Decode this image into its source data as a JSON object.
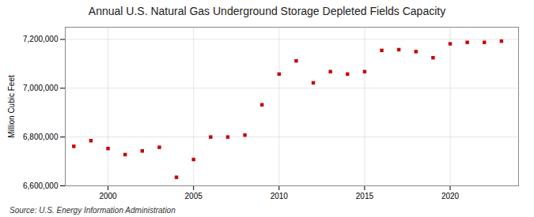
{
  "chart_data": {
    "type": "scatter",
    "title": "Annual U.S. Natural Gas Underground Storage Depleted Fields Capacity",
    "ylabel": "Million Cubic Feet",
    "source": "Source: U.S. Energy Information Administration",
    "x": [
      1998,
      1999,
      2000,
      2001,
      2002,
      2003,
      2004,
      2005,
      2006,
      2007,
      2008,
      2009,
      2010,
      2011,
      2012,
      2013,
      2014,
      2015,
      2016,
      2017,
      2018,
      2019,
      2020,
      2021,
      2022,
      2023
    ],
    "values": [
      6762000,
      6785000,
      6753000,
      6728000,
      6743000,
      6758000,
      6635000,
      6708000,
      6800000,
      6800000,
      6808000,
      6932000,
      7058000,
      7112000,
      7022000,
      7068000,
      7058000,
      7068000,
      7155000,
      7158000,
      7150000,
      7125000,
      7182000,
      7188000,
      7188000,
      7193000
    ],
    "color": "#cc0000",
    "marker": "square",
    "xlim": [
      1997.5,
      2024.0
    ],
    "xticks": [
      2000,
      2005,
      2010,
      2015,
      2020
    ],
    "ylim": [
      6600000,
      7250000
    ],
    "yticks": [
      {
        "value": 6600000,
        "label": "6,600,000"
      },
      {
        "value": 6800000,
        "label": "6,800,000"
      },
      {
        "value": 7000000,
        "label": "7,000,000"
      },
      {
        "value": 7200000,
        "label": "7,200,000"
      }
    ],
    "grid": true
  }
}
